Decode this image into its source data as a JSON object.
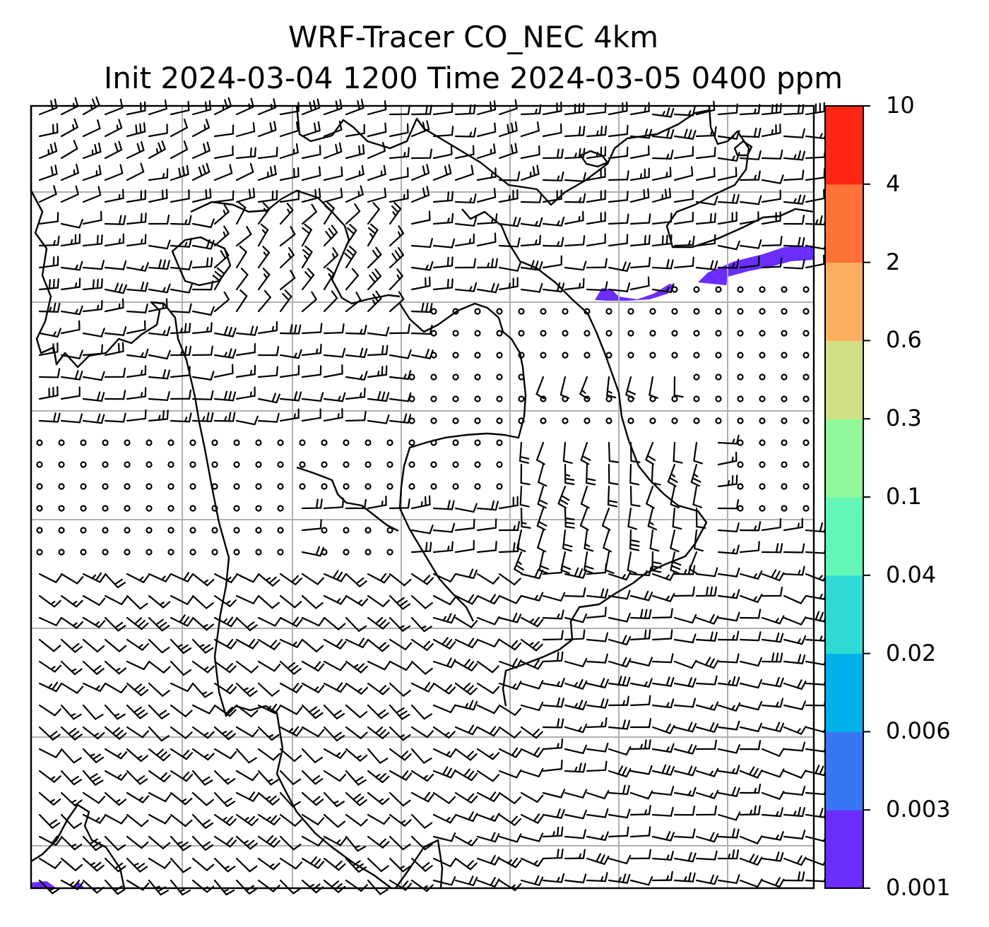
{
  "title": {
    "line1": "WRF-Tracer CO_NEC 4km",
    "line2": "Init 2024-03-04 1200 Time 2024-03-05 0400 ppm"
  },
  "colorbar": {
    "levels": [
      "0.001",
      "0.003",
      "0.006",
      "0.02",
      "0.04",
      "0.1",
      "0.3",
      "0.6",
      "2",
      "4",
      "10"
    ],
    "colors": [
      "#6a2dfb",
      "#3877f4",
      "#00b1ea",
      "#2ddbd4",
      "#62f7b6",
      "#91f89b",
      "#d3df84",
      "#fdae60",
      "#ff7238",
      "#ff2614"
    ]
  },
  "map": {
    "tracer_fill_color": "#6a2dfb",
    "gridline_color": "#b0b0b0",
    "coastline_color": "#000000",
    "barb_color": "#000000"
  }
}
